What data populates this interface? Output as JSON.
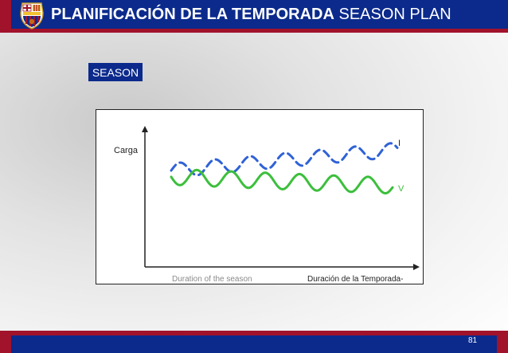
{
  "header": {
    "title_bold": "PLANIFICACIÓN DE LA TEMPORADA",
    "title_regular": " SEASON PLAN",
    "crest_text": "FCB"
  },
  "season_label": "SEASON",
  "diagram": {
    "y_axis_label": "Carga",
    "x_label_english": "Duration of the season",
    "x_label_spanish": "Duración de la Temporada-",
    "series": [
      {
        "name": "I",
        "style": "dashed",
        "color": "#2f62d6"
      },
      {
        "name": "V",
        "style": "solid",
        "color": "#3cbf3c"
      }
    ]
  },
  "footer": {
    "page_number": "81"
  },
  "colors": {
    "brand_blue": "#0b2a8c",
    "brand_red": "#a1122b"
  }
}
